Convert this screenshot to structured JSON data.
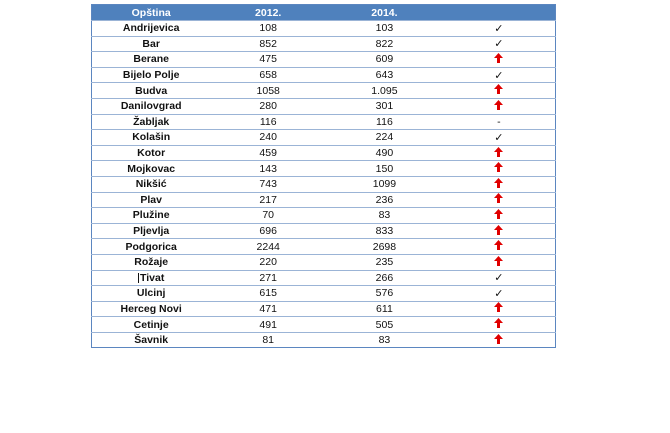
{
  "header": {
    "col1": "Opština",
    "col2": "2012.",
    "col3": "2014.",
    "col4": ""
  },
  "colors": {
    "header_bg": "#4f81bd",
    "arrow": "#e00000"
  },
  "rows": [
    {
      "name": "Andrijevica",
      "y2012": "108",
      "y2014": "103",
      "mark": "check"
    },
    {
      "name": "Bar",
      "y2012": "852",
      "y2014": "822",
      "mark": "check"
    },
    {
      "name": "Berane",
      "y2012": "475",
      "y2014": "609",
      "mark": "arrow-up"
    },
    {
      "name": "Bijelo Polje",
      "y2012": "658",
      "y2014": "643",
      "mark": "check"
    },
    {
      "name": "Budva",
      "y2012": "1058",
      "y2014": "1.095",
      "mark": "arrow-up"
    },
    {
      "name": "Danilovgrad",
      "y2012": "280",
      "y2014": "301",
      "mark": "arrow-up"
    },
    {
      "name": "Žabljak",
      "y2012": "116",
      "y2014": "116",
      "mark": "dash"
    },
    {
      "name": "Kolašin",
      "y2012": "240",
      "y2014": "224",
      "mark": "check"
    },
    {
      "name": "Kotor",
      "y2012": "459",
      "y2014": "490",
      "mark": "arrow-up"
    },
    {
      "name": "Mojkovac",
      "y2012": "143",
      "y2014": "150",
      "mark": "arrow-up"
    },
    {
      "name": "Nikšić",
      "y2012": "743",
      "y2014": "1099",
      "mark": "arrow-up"
    },
    {
      "name": "Plav",
      "y2012": "217",
      "y2014": "236",
      "mark": "arrow-up"
    },
    {
      "name": "Plužine",
      "y2012": "70",
      "y2014": "83",
      "mark": "arrow-up"
    },
    {
      "name": "Pljevlja",
      "y2012": "696",
      "y2014": "833",
      "mark": "arrow-up"
    },
    {
      "name": "Podgorica",
      "y2012": "2244",
      "y2014": "2698",
      "mark": "arrow-up"
    },
    {
      "name": "Rožaje",
      "y2012": "220",
      "y2014": "235",
      "mark": "arrow-up"
    },
    {
      "name": "Tivat",
      "y2012": "271",
      "y2014": "266",
      "mark": "check",
      "cursor": true
    },
    {
      "name": "Ulcinj",
      "y2012": "615",
      "y2014": "576",
      "mark": "check"
    },
    {
      "name": "Herceg Novi",
      "y2012": "471",
      "y2014": "611",
      "mark": "arrow-up"
    },
    {
      "name": "Cetinje",
      "y2012": "491",
      "y2014": "505",
      "mark": "arrow-up"
    },
    {
      "name": "Šavnik",
      "y2012": "81",
      "y2014": "83",
      "mark": "arrow-up"
    }
  ]
}
